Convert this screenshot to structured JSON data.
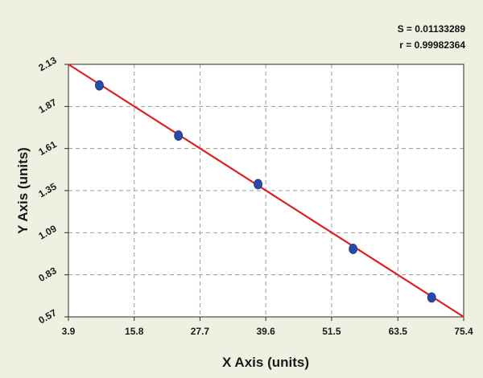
{
  "chart_data": {
    "type": "scatter",
    "xlabel": "X Axis (units)",
    "ylabel": "Y Axis (units)",
    "xlim": [
      3.9,
      75.4
    ],
    "ylim": [
      0.57,
      2.13
    ],
    "xticks": [
      "3.9",
      "15.8",
      "27.7",
      "39.6",
      "51.5",
      "63.5",
      "75.4"
    ],
    "yticks": [
      "0.57",
      "0.83",
      "1.09",
      "1.35",
      "1.61",
      "1.87",
      "2.13"
    ],
    "grid": true,
    "points": {
      "x": [
        9.5,
        23.8,
        38.2,
        55.4,
        69.6
      ],
      "y": [
        2.0,
        1.69,
        1.39,
        0.99,
        0.69
      ]
    },
    "fit_line": {
      "x": [
        3.9,
        75.4
      ],
      "y": [
        2.13,
        0.57
      ]
    },
    "stats": {
      "s_label": "S = 0.01133289",
      "r_label": "r = 0.99982364"
    },
    "colors": {
      "background": "#f0f0e2",
      "plot_area": "#ffffff",
      "line": "#e02020",
      "point": "#2a4aa8",
      "grid": "#9a9a9a"
    }
  }
}
